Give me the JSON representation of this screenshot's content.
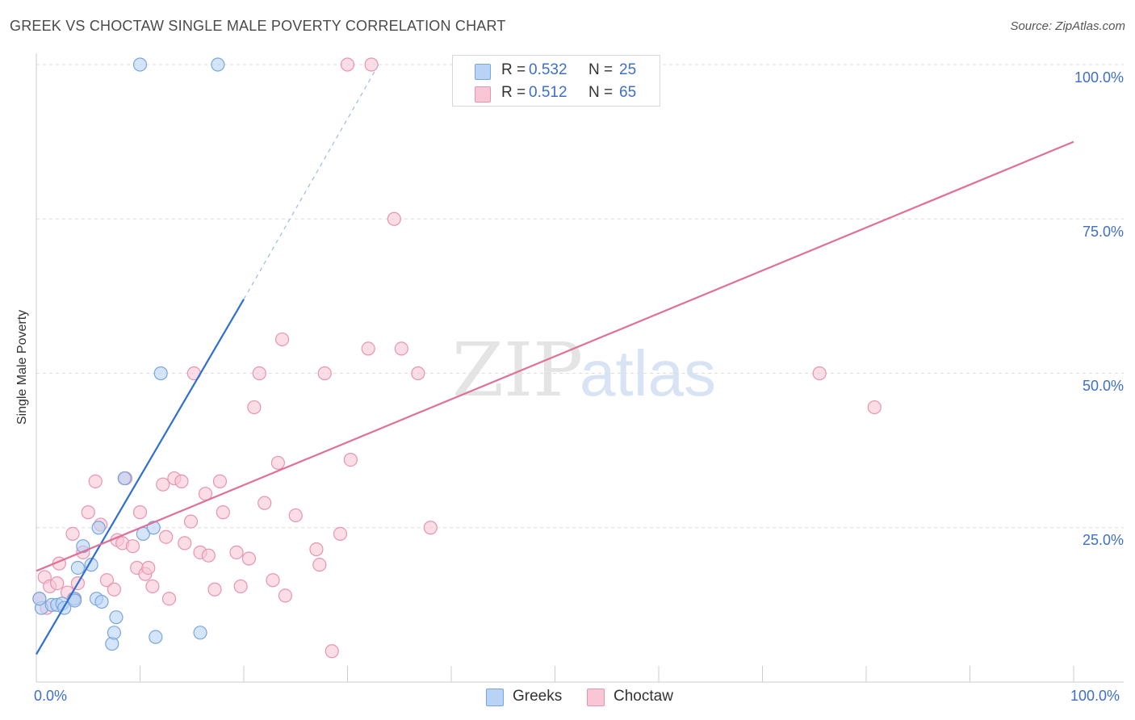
{
  "title": "GREEK VS CHOCTAW SINGLE MALE POVERTY CORRELATION CHART",
  "source": "Source: ZipAtlas.com",
  "colors": {
    "blue_fill": "#b8d3f5",
    "blue_stroke": "#7aa6dc",
    "blue_line": "#2f6fd0",
    "pink_fill": "#f8c6d5",
    "pink_stroke": "#e894b0",
    "pink_line": "#e07098",
    "accent_text": "#3d6fc9",
    "grid": "#dddddd"
  },
  "legend": {
    "series": [
      {
        "name": "Greeks",
        "r_label": "R =",
        "r_value": "0.532",
        "n_label": "N =",
        "n_value": "25",
        "color": "blue"
      },
      {
        "name": "Choctaw",
        "r_label": "R =",
        "r_value": "0.512",
        "n_label": "N =",
        "n_value": "65",
        "color": "pink"
      }
    ]
  },
  "watermark": {
    "zip": "ZIP",
    "atlas": "atlas"
  },
  "chart_data": {
    "type": "scatter",
    "title": "GREEK VS CHOCTAW SINGLE MALE POVERTY CORRELATION CHART",
    "xlabel": "",
    "ylabel": "Single Male Poverty",
    "xlim": [
      0,
      100
    ],
    "ylim": [
      0,
      100
    ],
    "x_tick_labels": [
      "0.0%",
      "100.0%"
    ],
    "y_ticks": [
      25,
      50,
      75,
      100
    ],
    "y_tick_labels": [
      "25.0%",
      "50.0%",
      "75.0%",
      "100.0%"
    ],
    "grid": true,
    "series": [
      {
        "name": "Greeks",
        "color": "blue",
        "points": [
          [
            0.5,
            12.0
          ],
          [
            1.5,
            12.5
          ],
          [
            2.0,
            12.5
          ],
          [
            2.5,
            12.7
          ],
          [
            2.7,
            12.0
          ],
          [
            3.7,
            13.5
          ],
          [
            3.7,
            13.2
          ],
          [
            4.0,
            18.5
          ],
          [
            4.5,
            22.0
          ],
          [
            5.3,
            19.0
          ],
          [
            5.8,
            13.5
          ],
          [
            6.3,
            13.0
          ],
          [
            6.0,
            25.0
          ],
          [
            7.3,
            6.2
          ],
          [
            7.5,
            8.0
          ],
          [
            7.7,
            10.5
          ],
          [
            8.5,
            33.0
          ],
          [
            10.0,
            100.0
          ],
          [
            10.3,
            24.0
          ],
          [
            11.3,
            25.0
          ],
          [
            11.5,
            7.3
          ],
          [
            12.0,
            50.0
          ],
          [
            15.8,
            8.0
          ],
          [
            17.5,
            100.0
          ],
          [
            0.3,
            13.5
          ]
        ],
        "trend": {
          "x0": 0,
          "y0": 4.5,
          "x1": 20,
          "y1": 62,
          "dash_x1": 33,
          "dash_y1": 100
        }
      },
      {
        "name": "Choctaw",
        "color": "pink",
        "points": [
          [
            0.3,
            13.5
          ],
          [
            0.8,
            17.0
          ],
          [
            1.0,
            12.0
          ],
          [
            1.3,
            15.5
          ],
          [
            2.0,
            16.0
          ],
          [
            2.2,
            19.2
          ],
          [
            3.0,
            14.5
          ],
          [
            3.5,
            24.0
          ],
          [
            3.6,
            13.5
          ],
          [
            4.0,
            16.0
          ],
          [
            4.5,
            21.0
          ],
          [
            5.0,
            27.5
          ],
          [
            5.7,
            32.5
          ],
          [
            6.2,
            25.5
          ],
          [
            6.8,
            16.5
          ],
          [
            7.5,
            15.0
          ],
          [
            7.8,
            23.0
          ],
          [
            8.3,
            22.5
          ],
          [
            8.6,
            33.0
          ],
          [
            9.3,
            22.0
          ],
          [
            9.7,
            18.5
          ],
          [
            10.0,
            27.5
          ],
          [
            10.5,
            17.5
          ],
          [
            10.8,
            18.5
          ],
          [
            11.2,
            15.5
          ],
          [
            12.2,
            32.0
          ],
          [
            12.5,
            23.5
          ],
          [
            12.8,
            13.5
          ],
          [
            13.3,
            33.0
          ],
          [
            14.0,
            32.5
          ],
          [
            14.3,
            22.5
          ],
          [
            14.9,
            26.0
          ],
          [
            15.2,
            50.0
          ],
          [
            15.8,
            21.0
          ],
          [
            16.3,
            30.5
          ],
          [
            16.6,
            20.5
          ],
          [
            17.2,
            15.0
          ],
          [
            17.7,
            32.5
          ],
          [
            18.0,
            27.5
          ],
          [
            19.3,
            21.0
          ],
          [
            19.7,
            15.5
          ],
          [
            20.5,
            20.0
          ],
          [
            21.0,
            44.5
          ],
          [
            21.5,
            50.0
          ],
          [
            22.0,
            29.0
          ],
          [
            22.8,
            16.5
          ],
          [
            23.3,
            35.5
          ],
          [
            23.7,
            55.5
          ],
          [
            24.0,
            14.0
          ],
          [
            25.0,
            27.0
          ],
          [
            27.0,
            21.5
          ],
          [
            27.3,
            19.0
          ],
          [
            27.8,
            50.0
          ],
          [
            28.5,
            5.0
          ],
          [
            29.3,
            24.0
          ],
          [
            30.0,
            100.0
          ],
          [
            30.3,
            36.0
          ],
          [
            32.0,
            54.0
          ],
          [
            32.3,
            100.0
          ],
          [
            34.5,
            75.0
          ],
          [
            35.2,
            54.0
          ],
          [
            36.8,
            50.0
          ],
          [
            38.0,
            25.0
          ],
          [
            75.5,
            50.0
          ],
          [
            80.8,
            44.5
          ]
        ],
        "trend": {
          "x0": 0,
          "y0": 18.0,
          "x1": 100,
          "y1": 87.5
        }
      }
    ]
  }
}
